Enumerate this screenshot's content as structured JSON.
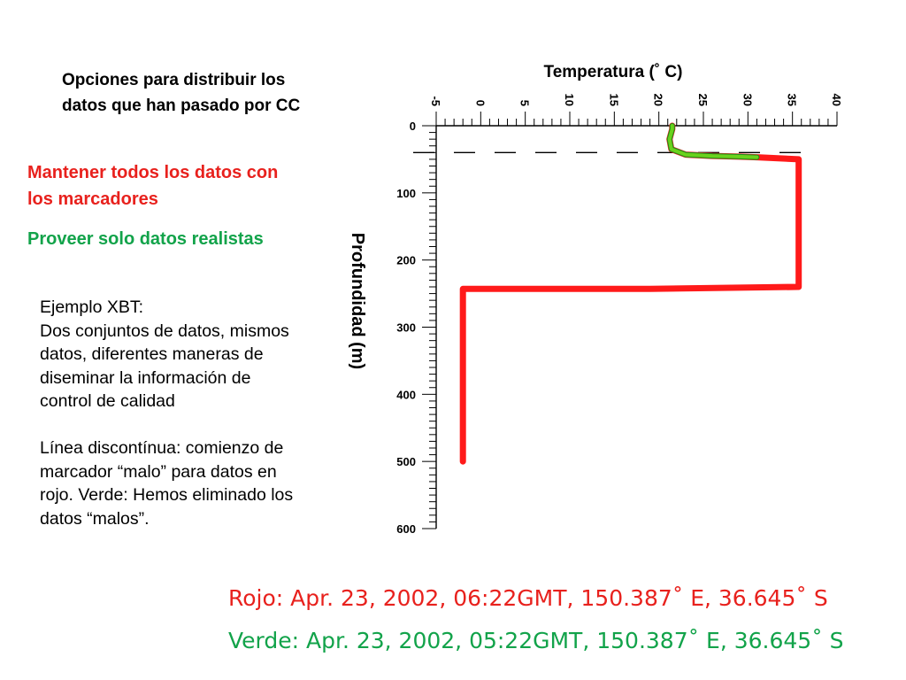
{
  "title_lines": [
    "Opciones para distribuir los",
    "datos que han pasado por CC"
  ],
  "red_option_lines": [
    "Mantener todos los datos con",
    "los marcadores"
  ],
  "green_option": "Proveer solo datos realistas",
  "example_text": "Ejemplo XBT:\nDos conjuntos de datos, mismos datos, diferentes maneras de diseminar la información de control de calidad\n\nLínea discontínua: comienzo de marcador “malo” para datos en rojo. Verde: Hemos eliminado los datos “malos”.",
  "footer_red": "Rojo: Apr. 23, 2002,  06:22GMT, 150.387˚  E, 36.645˚  S",
  "footer_green": "Verde: Apr. 23, 2002, 05:22GMT, 150.387˚  E, 36.645˚  S",
  "colors": {
    "red": "#e8211d",
    "green": "#12a34a",
    "red_line": "#ff1a1a",
    "green_line": "#6ad21c"
  },
  "chart_data": {
    "type": "line",
    "xlabel": "Temperatura (˚  C)",
    "ylabel": "Profundidad (m)",
    "xlim": [
      -5,
      40
    ],
    "ylim": [
      0,
      600
    ],
    "y_inverted": true,
    "x_axis_position": "top",
    "x_tick_labels": [
      "-5",
      "0",
      "5",
      "10",
      "15",
      "20",
      "25",
      "30",
      "35",
      "40"
    ],
    "y_tick_labels": [
      "0",
      "100",
      "200",
      "300",
      "400",
      "500",
      "600"
    ],
    "bad_flag_depth": 40,
    "series": [
      {
        "x": [
          21.5,
          21.5,
          21.2,
          21.4,
          23,
          26,
          29,
          31,
          35.7,
          35.7,
          19,
          -2,
          -2
        ],
        "y": [
          0,
          5,
          20,
          35,
          43,
          45,
          46,
          47,
          50,
          240,
          243,
          243,
          500
        ]
      },
      {
        "x": [
          21.5,
          21.5,
          21.2,
          21.4,
          23,
          26,
          29,
          31
        ],
        "y": [
          0,
          5,
          20,
          35,
          43,
          45,
          46,
          47
        ]
      }
    ]
  }
}
